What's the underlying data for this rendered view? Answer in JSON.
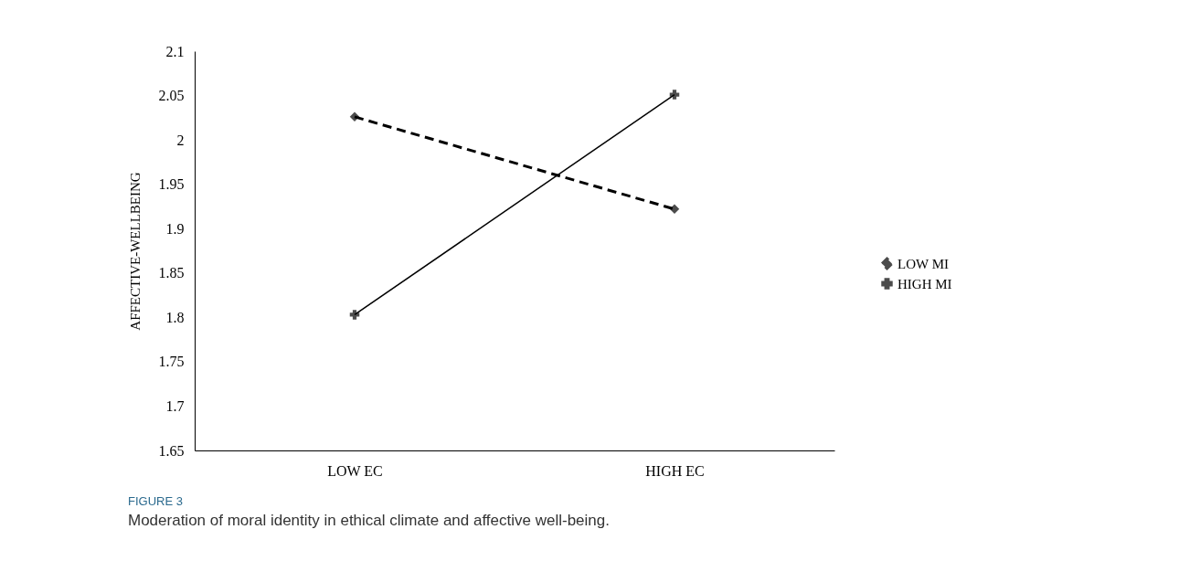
{
  "chart_data": {
    "type": "line",
    "title": "FIGURE 3",
    "subtitle": "Moderation of moral identity in ethical climate and affective well-being.",
    "ylabel": "AFFECTIVE-WELLBEING",
    "categories": [
      "LOW EC",
      "HIGH EC"
    ],
    "series": [
      {
        "name": "LOW MI",
        "color": "#000000",
        "values": [
          2.026,
          1.922
        ],
        "line_style": "dashed",
        "marker": "diamond"
      },
      {
        "name": "HIGH MI",
        "color": "#000000",
        "values": [
          1.803,
          2.051
        ],
        "line_style": "solid",
        "marker": "cross"
      }
    ],
    "ylim": [
      1.65,
      2.1
    ],
    "yticks": [
      1.65,
      1.7,
      1.75,
      1.8,
      1.85,
      1.9,
      1.95,
      2,
      2.05,
      2.1
    ],
    "grid": false,
    "legend": "right"
  }
}
